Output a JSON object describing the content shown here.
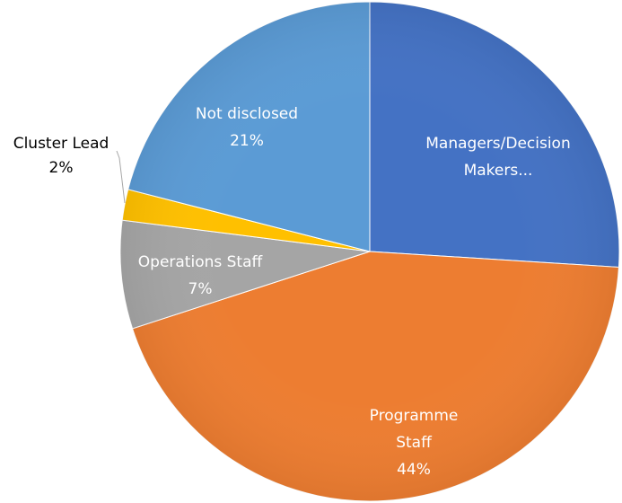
{
  "chart_data": {
    "type": "pie",
    "categories": [
      "Managers/Decision Makers...",
      "Programme Staff",
      "Operations Staff",
      "Cluster Lead",
      "Not disclosed"
    ],
    "values": [
      26,
      44,
      7,
      2,
      21
    ],
    "value_labels": [
      null,
      "44%",
      "7%",
      "2%",
      "21%"
    ],
    "colors": [
      "#4472c4",
      "#ed7d31",
      "#a5a5a5",
      "#ffc000",
      "#5b9bd5"
    ]
  }
}
